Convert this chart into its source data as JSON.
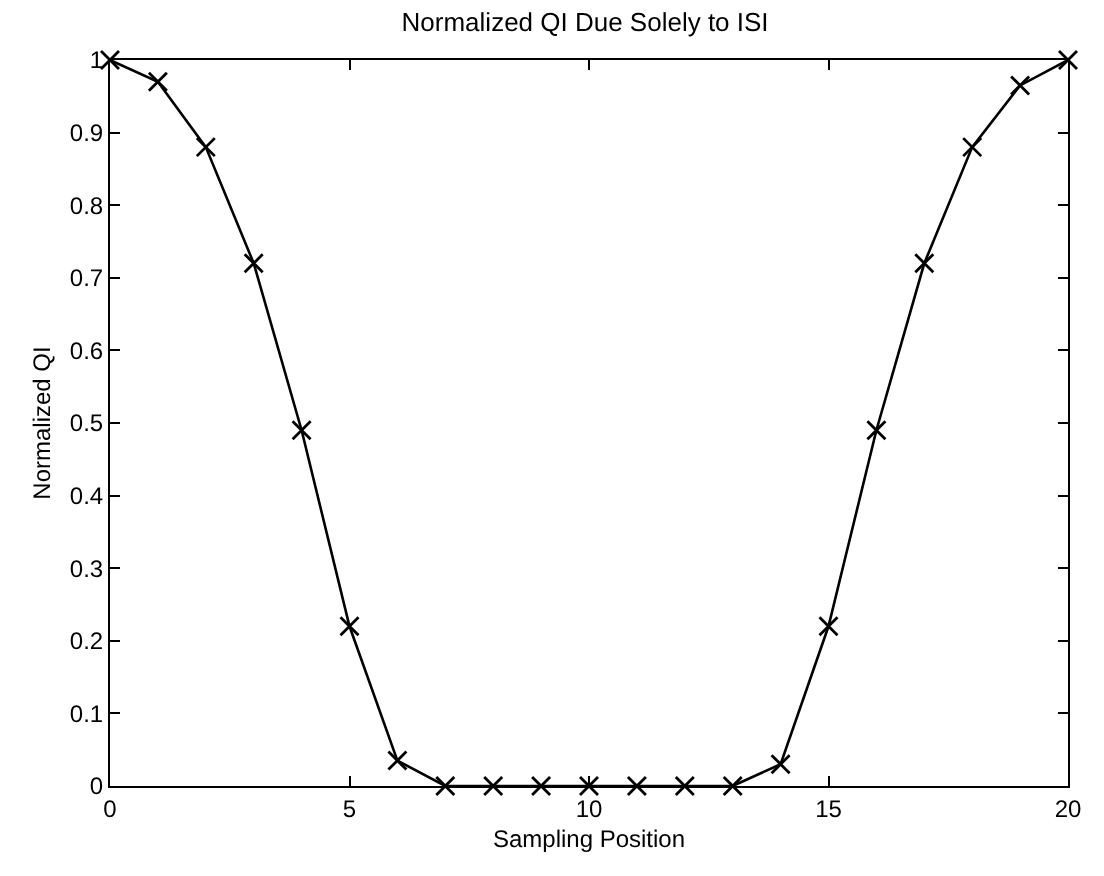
{
  "chart_data": {
    "type": "line",
    "title": "Normalized QI Due Solely to ISI",
    "xlabel": "Sampling Position",
    "ylabel": "Normalized QI",
    "x": [
      0,
      1,
      2,
      3,
      4,
      5,
      6,
      7,
      8,
      9,
      10,
      11,
      12,
      13,
      14,
      15,
      16,
      17,
      18,
      19,
      20
    ],
    "series": [
      {
        "color": "#000000",
        "values": [
          1,
          0.97,
          0.88,
          0.72,
          0.49,
          0.22,
          0.035,
          0,
          0,
          0,
          0,
          0,
          0,
          0,
          0.03,
          0.22,
          0.49,
          0.72,
          0.88,
          0.965,
          1
        ]
      }
    ],
    "xlim": [
      0,
      20
    ],
    "xticks": [
      0,
      5,
      10,
      15,
      20
    ],
    "ylim": [
      0,
      1
    ],
    "yticks": [
      0,
      0.1,
      0.2,
      0.3,
      0.4,
      0.5,
      0.6,
      0.7,
      0.8,
      0.9,
      1
    ],
    "legend": false,
    "marker": "cross",
    "line_style": "solid"
  }
}
